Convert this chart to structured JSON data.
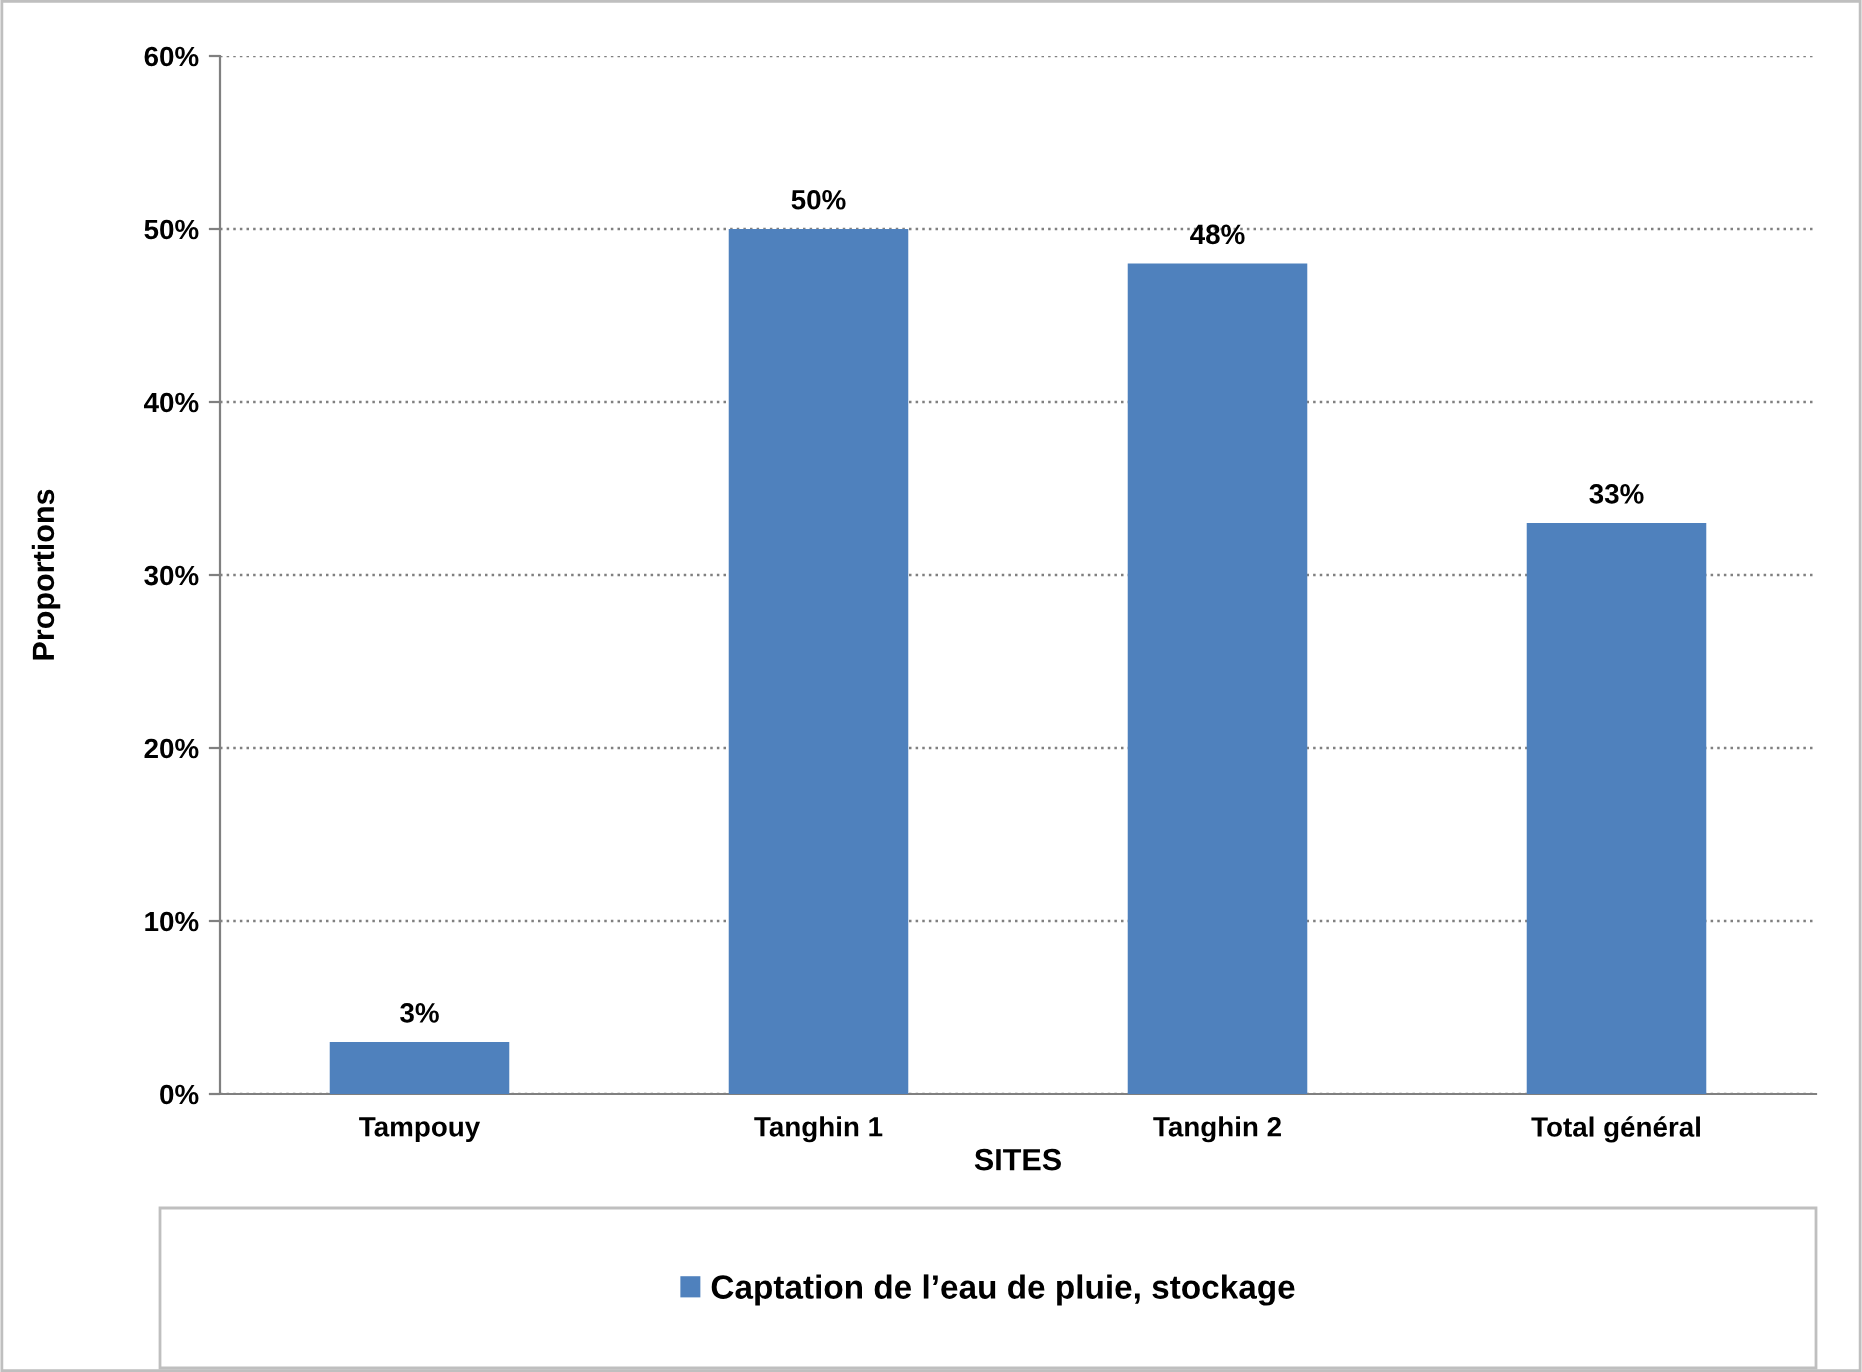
{
  "chart_data": {
    "type": "bar",
    "xlabel": "SITES",
    "ylabel": "Proportions",
    "categories": [
      "Tampouy",
      "Tanghin 1",
      "Tanghin 2",
      "Total général"
    ],
    "series": [
      {
        "name": "Captation de l’eau de pluie, stockage",
        "color": "#4f81bd",
        "values": [
          3,
          50,
          48,
          33
        ],
        "value_labels": [
          "3%",
          "50%",
          "48%",
          "33%"
        ]
      }
    ],
    "ylim": [
      0,
      60
    ],
    "yticks": [
      {
        "value": 0,
        "label": "0%"
      },
      {
        "value": 10,
        "label": "10%"
      },
      {
        "value": 20,
        "label": "20%"
      },
      {
        "value": 30,
        "label": "30%"
      },
      {
        "value": 40,
        "label": "40%"
      },
      {
        "value": 50,
        "label": "50%"
      },
      {
        "value": 60,
        "label": "60%"
      }
    ],
    "grid": "y",
    "legend": "bottom"
  }
}
